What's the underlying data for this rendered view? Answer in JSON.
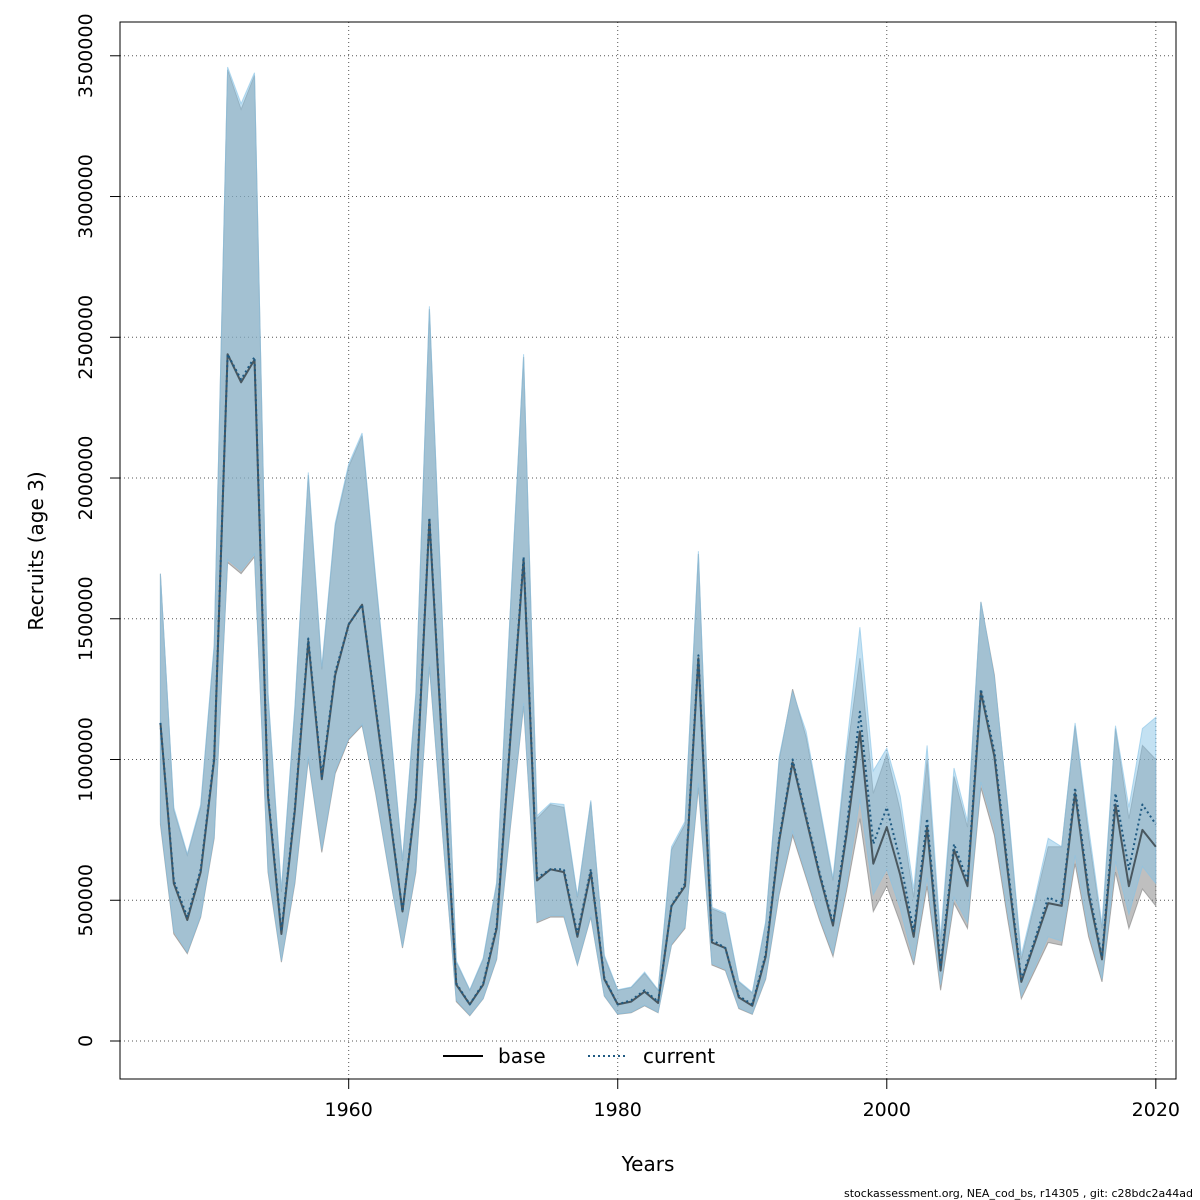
{
  "chart_data": {
    "type": "line",
    "title": "",
    "xlabel": "Years",
    "ylabel": "Recruits (age 3)",
    "xlim": [
      1943,
      2021.5
    ],
    "ylim": [
      -135000,
      3620000
    ],
    "xticks": [
      1960,
      1980,
      2000,
      2020
    ],
    "xtick_labels": [
      "1960",
      "1980",
      "2000",
      "2020"
    ],
    "yticks": [
      0,
      500000,
      1000000,
      1500000,
      2000000,
      2500000,
      3000000,
      3500000
    ],
    "ytick_labels": [
      "0",
      "500000",
      "1000000",
      "1500000",
      "2000000",
      "2500000",
      "3000000",
      "3500000"
    ],
    "grid": true,
    "legend_position": "bottom-center",
    "footer_text": "stockassessment.org, NEA_cod_bs, r14305 , git: c28bdc2a44ad",
    "x": [
      1946,
      1947,
      1948,
      1949,
      1950,
      1951,
      1952,
      1953,
      1954,
      1955,
      1956,
      1957,
      1958,
      1959,
      1960,
      1961,
      1962,
      1963,
      1964,
      1965,
      1966,
      1967,
      1968,
      1969,
      1970,
      1971,
      1972,
      1973,
      1974,
      1975,
      1976,
      1977,
      1978,
      1979,
      1980,
      1981,
      1982,
      1983,
      1984,
      1985,
      1986,
      1987,
      1988,
      1989,
      1990,
      1991,
      1992,
      1993,
      1994,
      1995,
      1996,
      1997,
      1998,
      1999,
      2000,
      2001,
      2002,
      2003,
      2004,
      2005,
      2006,
      2007,
      2008,
      2009,
      2010,
      2011,
      2012,
      2013,
      2014,
      2015,
      2016,
      2017,
      2018,
      2019,
      2020
    ],
    "series": [
      {
        "name": "base",
        "color": "#000000",
        "band_color": "#808080",
        "dash": "solid",
        "values": [
          1130000,
          560000,
          430000,
          600000,
          1000000,
          2440000,
          2340000,
          2420000,
          870000,
          380000,
          820000,
          1420000,
          930000,
          1300000,
          1480000,
          1550000,
          1180000,
          820000,
          460000,
          860000,
          1850000,
          1000000,
          200000,
          130000,
          200000,
          400000,
          1060000,
          1710000,
          570000,
          610000,
          600000,
          370000,
          600000,
          220000,
          130000,
          140000,
          175000,
          135000,
          480000,
          550000,
          1360000,
          350000,
          330000,
          155000,
          125000,
          300000,
          710000,
          990000,
          790000,
          590000,
          410000,
          730000,
          1100000,
          630000,
          760000,
          590000,
          370000,
          760000,
          250000,
          680000,
          550000,
          1240000,
          1010000,
          600000,
          210000,
          350000,
          490000,
          480000,
          880000,
          520000,
          290000,
          840000,
          550000,
          750000,
          690000
        ],
        "lower": [
          770000,
          380000,
          310000,
          440000,
          720000,
          1700000,
          1660000,
          1720000,
          600000,
          280000,
          560000,
          1000000,
          670000,
          950000,
          1070000,
          1120000,
          880000,
          600000,
          330000,
          600000,
          1330000,
          720000,
          140000,
          90000,
          150000,
          290000,
          750000,
          1190000,
          420000,
          440000,
          440000,
          270000,
          440000,
          160000,
          95000,
          100000,
          125000,
          100000,
          340000,
          400000,
          900000,
          270000,
          250000,
          115000,
          95000,
          220000,
          520000,
          730000,
          580000,
          430000,
          300000,
          530000,
          790000,
          460000,
          550000,
          420000,
          270000,
          550000,
          180000,
          490000,
          400000,
          900000,
          730000,
          430000,
          150000,
          250000,
          350000,
          340000,
          630000,
          370000,
          210000,
          600000,
          400000,
          540000,
          480000
        ],
        "upper": [
          1660000,
          820000,
          660000,
          830000,
          1400000,
          3450000,
          3310000,
          3430000,
          1230000,
          530000,
          1180000,
          2010000,
          1320000,
          1830000,
          2040000,
          2150000,
          1640000,
          1160000,
          640000,
          1230000,
          2600000,
          1440000,
          280000,
          180000,
          290000,
          560000,
          1510000,
          2430000,
          790000,
          840000,
          830000,
          510000,
          850000,
          300000,
          180000,
          190000,
          240000,
          180000,
          680000,
          770000,
          1730000,
          470000,
          450000,
          210000,
          170000,
          420000,
          1000000,
          1250000,
          1080000,
          830000,
          570000,
          1010000,
          1360000,
          880000,
          1020000,
          820000,
          510000,
          1000000,
          350000,
          940000,
          760000,
          1560000,
          1300000,
          830000,
          290000,
          490000,
          690000,
          690000,
          1120000,
          730000,
          400000,
          1110000,
          790000,
          1050000,
          1000000
        ]
      },
      {
        "name": "current",
        "color": "#1f5a82",
        "band_color": "#87c3e6",
        "dash": "dotted",
        "values": [
          1130000,
          570000,
          440000,
          610000,
          1010000,
          2440000,
          2350000,
          2430000,
          880000,
          390000,
          830000,
          1430000,
          940000,
          1310000,
          1480000,
          1550000,
          1190000,
          830000,
          460000,
          870000,
          1860000,
          1010000,
          205000,
          130000,
          205000,
          410000,
          1070000,
          1720000,
          580000,
          610000,
          610000,
          380000,
          610000,
          225000,
          130000,
          145000,
          180000,
          140000,
          480000,
          560000,
          1370000,
          360000,
          330000,
          160000,
          130000,
          310000,
          720000,
          1000000,
          800000,
          600000,
          420000,
          750000,
          1170000,
          700000,
          830000,
          640000,
          390000,
          790000,
          270000,
          700000,
          570000,
          1250000,
          1030000,
          620000,
          220000,
          360000,
          510000,
          490000,
          900000,
          540000,
          300000,
          880000,
          610000,
          840000,
          770000
        ],
        "lower": [
          780000,
          390000,
          315000,
          445000,
          730000,
          1710000,
          1670000,
          1730000,
          610000,
          285000,
          570000,
          1010000,
          680000,
          960000,
          1075000,
          1125000,
          890000,
          605000,
          335000,
          610000,
          1340000,
          725000,
          145000,
          92000,
          152000,
          295000,
          760000,
          1200000,
          425000,
          445000,
          445000,
          272000,
          445000,
          162000,
          96000,
          102000,
          128000,
          102000,
          345000,
          405000,
          915000,
          275000,
          255000,
          118000,
          97000,
          225000,
          530000,
          745000,
          590000,
          440000,
          310000,
          550000,
          860000,
          520000,
          610000,
          470000,
          285000,
          580000,
          200000,
          510000,
          420000,
          920000,
          755000,
          455000,
          160000,
          262000,
          370000,
          355000,
          660000,
          390000,
          220000,
          640000,
          450000,
          620000,
          560000
        ],
        "upper": [
          1660000,
          830000,
          665000,
          840000,
          1410000,
          3460000,
          3330000,
          3440000,
          1240000,
          540000,
          1190000,
          2020000,
          1330000,
          1840000,
          2050000,
          2160000,
          1650000,
          1170000,
          645000,
          1240000,
          2610000,
          1450000,
          285000,
          182000,
          295000,
          565000,
          1520000,
          2440000,
          800000,
          845000,
          840000,
          515000,
          855000,
          305000,
          182000,
          192000,
          245000,
          182000,
          690000,
          780000,
          1740000,
          475000,
          455000,
          213000,
          173000,
          425000,
          1010000,
          1240000,
          1100000,
          840000,
          580000,
          1040000,
          1470000,
          960000,
          1040000,
          870000,
          540000,
          1050000,
          370000,
          970000,
          780000,
          1560000,
          1290000,
          840000,
          305000,
          505000,
          720000,
          690000,
          1130000,
          760000,
          415000,
          1120000,
          830000,
          1110000,
          1150000
        ]
      }
    ]
  }
}
